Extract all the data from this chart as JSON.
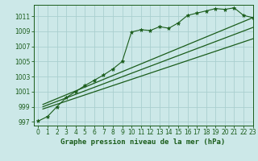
{
  "title": "Graphe pression niveau de la mer (hPa)",
  "bg_color": "#cce8e8",
  "grid_color": "#aacfcf",
  "line_color": "#1a5c1a",
  "marker_color": "#1a5c1a",
  "xlim": [
    -0.5,
    23
  ],
  "ylim": [
    996.5,
    1012.5
  ],
  "xticks": [
    0,
    1,
    2,
    3,
    4,
    5,
    6,
    7,
    8,
    9,
    10,
    11,
    12,
    13,
    14,
    15,
    16,
    17,
    18,
    19,
    20,
    21,
    22,
    23
  ],
  "yticks": [
    997,
    999,
    1001,
    1003,
    1005,
    1007,
    1009,
    1011
  ],
  "pressure_data": [
    997.1,
    997.7,
    999.0,
    1000.2,
    1001.0,
    1001.8,
    1002.5,
    1003.2,
    1004.0,
    1005.0,
    1008.9,
    1009.2,
    1009.1,
    1009.6,
    1009.4,
    1010.1,
    1011.1,
    1011.4,
    1011.7,
    1012.0,
    1011.9,
    1012.1,
    1011.1,
    1010.8
  ],
  "trend_lines": [
    {
      "x0": 0.5,
      "y0": 999.3,
      "x1": 23,
      "y1": 1010.8
    },
    {
      "x0": 0.5,
      "y0": 999.0,
      "x1": 23,
      "y1": 1009.5
    },
    {
      "x0": 0.5,
      "y0": 998.7,
      "x1": 23,
      "y1": 1008.0
    }
  ],
  "xlabel_fontsize": 6.5,
  "tick_fontsize": 5.5
}
